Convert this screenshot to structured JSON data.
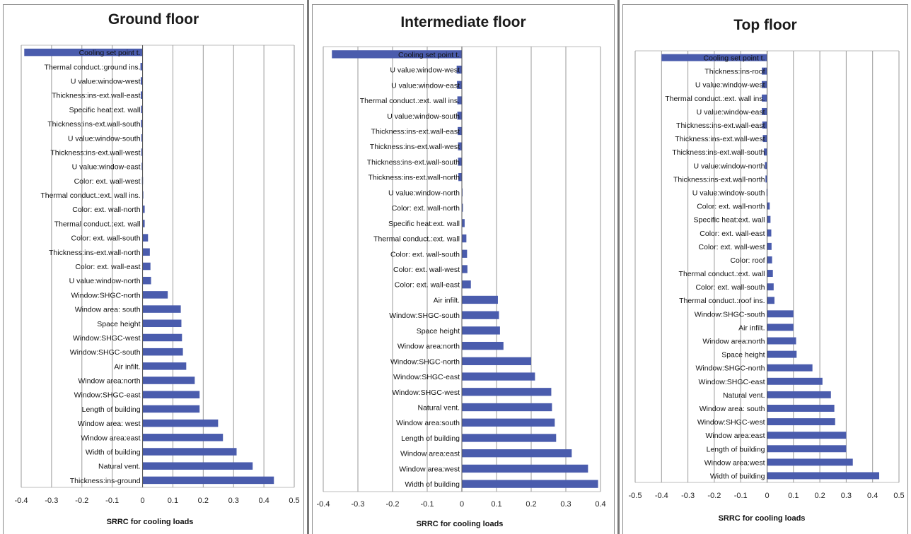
{
  "colors": {
    "bar": "#4a5cad",
    "grid": "#9a9a9a",
    "axis": "#555555"
  },
  "chart_data": [
    {
      "type": "bar",
      "orientation": "horizontal",
      "title": "Ground floor",
      "xlabel": "SRRC for cooling loads",
      "xlim": [
        -0.4,
        0.5
      ],
      "xticks": [
        "-0.4",
        "-0.3",
        "-0.2",
        "-0.1",
        "0",
        "0.1",
        "0.2",
        "0.3",
        "0.4",
        "0.5"
      ],
      "grid": true,
      "categories": [
        "Cooling set point t.",
        "Thermal conduct.:ground ins.",
        "U value:window-west",
        "Thickness:ins-ext.wall-east",
        "Specific heat:ext. wall",
        "Thickness:ins-ext.wall-south",
        "U value:window-south",
        "Thickness:ins-ext.wall-west",
        "U value:window-east",
        "Color: ext. wall-west",
        "Thermal conduct.:ext. wall ins.",
        "Color: ext. wall-north",
        "Thermal conduct.:ext. wall",
        "Color: ext. wall-south",
        "Thickness:ins-ext.wall-north",
        "Color: ext. wall-east",
        "U value:window-north",
        "Window:SHGC-north",
        "Window area: south",
        "Space height",
        "Window:SHGC-west",
        "Window:SHGC-south",
        "Air infilt.",
        "Window area:north",
        "Window:SHGC-east",
        "Length of building",
        "Window area: west",
        "Window area:east",
        "Width of building",
        "Natural vent.",
        "Thickness:ins-ground"
      ],
      "values": [
        -0.39,
        -0.007,
        -0.006,
        -0.006,
        -0.005,
        -0.005,
        -0.004,
        -0.004,
        -0.003,
        -0.002,
        -0.001,
        0.007,
        0.007,
        0.018,
        0.024,
        0.026,
        0.028,
        0.083,
        0.126,
        0.128,
        0.13,
        0.133,
        0.144,
        0.172,
        0.188,
        0.188,
        0.249,
        0.265,
        0.31,
        0.363,
        0.433
      ]
    },
    {
      "type": "bar",
      "orientation": "horizontal",
      "title": "Intermediate floor",
      "xlabel": "SRRC for cooling loads",
      "xlim": [
        -0.4,
        0.4
      ],
      "xticks": [
        "-0.4",
        "-0.3",
        "-0.2",
        "-0.1",
        "0",
        "0.1",
        "0.2",
        "0.3",
        "0.4"
      ],
      "grid": true,
      "categories": [
        "Cooling set point t.",
        "U value:window-west",
        "U value:window-east",
        "Thermal conduct.:ext. wall ins.",
        "U value:window-south",
        "Thickness:ins-ext.wall-east",
        "Thickness:ins-ext.wall-west",
        "Thickness:ins-ext.wall-south",
        "Thickness:ins-ext.wall-north",
        "U value:window-north",
        "Color: ext. wall-north",
        "Specific heat:ext. wall",
        "Thermal conduct.:ext. wall",
        "Color: ext. wall-south",
        "Color: ext. wall-west",
        "Color: ext. wall-east",
        "Air infilt.",
        "Window:SHGC-south",
        "Space height",
        "Window area:north",
        "Window:SHGC-north",
        "Window:SHGC-east",
        "Window:SHGC-west",
        "Natural vent.",
        "Window area:south",
        "Length of building",
        "Window area:east",
        "Window area:west",
        "Width of building"
      ],
      "values": [
        -0.375,
        -0.015,
        -0.014,
        -0.013,
        -0.013,
        -0.012,
        -0.011,
        -0.011,
        -0.01,
        -0.001,
        0.003,
        0.008,
        0.013,
        0.015,
        0.016,
        0.026,
        0.104,
        0.107,
        0.11,
        0.12,
        0.2,
        0.211,
        0.258,
        0.26,
        0.268,
        0.272,
        0.317,
        0.364,
        0.393
      ]
    },
    {
      "type": "bar",
      "orientation": "horizontal",
      "title": "Top floor",
      "xlabel": "SRRC for cooling loads",
      "xlim": [
        -0.5,
        0.5
      ],
      "xticks": [
        "-0.5",
        "-0.4",
        "-0.3",
        "-0.2",
        "-0.1",
        "0",
        "0.1",
        "0.2",
        "0.3",
        "0.4",
        "0.5"
      ],
      "grid": true,
      "categories": [
        "Cooling set point t.",
        "Thickness:ins-roof",
        "U value:window-west",
        "Thermal conduct.:ext. wall ins.",
        "U value:window-east",
        "Thickness:ins-ext.wall-east",
        "Thickness:ins-ext.wall-west",
        "Thickness:ins-ext.wall-south",
        "U value:window-north",
        "Thickness:ins-ext.wall-north",
        "U value:window-south",
        "Color: ext. wall-north",
        "Specific heat:ext. wall",
        "Color: ext. wall-east",
        "Color: ext. wall-west",
        "Color: roof",
        "Thermal conduct.:ext. wall",
        "Color: ext. wall-south",
        "Thermal conduct.:roof ins.",
        "Window:SHGC-south",
        "Air infilt.",
        "Window area:north",
        "Space height",
        "Window:SHGC-north",
        "Window:SHGC-east",
        "Natural vent.",
        "Window area: south",
        "Window:SHGC-west",
        "Window area:east",
        "Length of building",
        "Window area:west",
        "Width of building"
      ],
      "values": [
        -0.4,
        -0.02,
        -0.02,
        -0.02,
        -0.02,
        -0.018,
        -0.016,
        -0.012,
        -0.008,
        -0.006,
        -0.002,
        0.01,
        0.013,
        0.016,
        0.017,
        0.019,
        0.022,
        0.025,
        0.028,
        0.1,
        0.1,
        0.11,
        0.112,
        0.172,
        0.21,
        0.242,
        0.255,
        0.258,
        0.3,
        0.3,
        0.325,
        0.425
      ]
    }
  ]
}
